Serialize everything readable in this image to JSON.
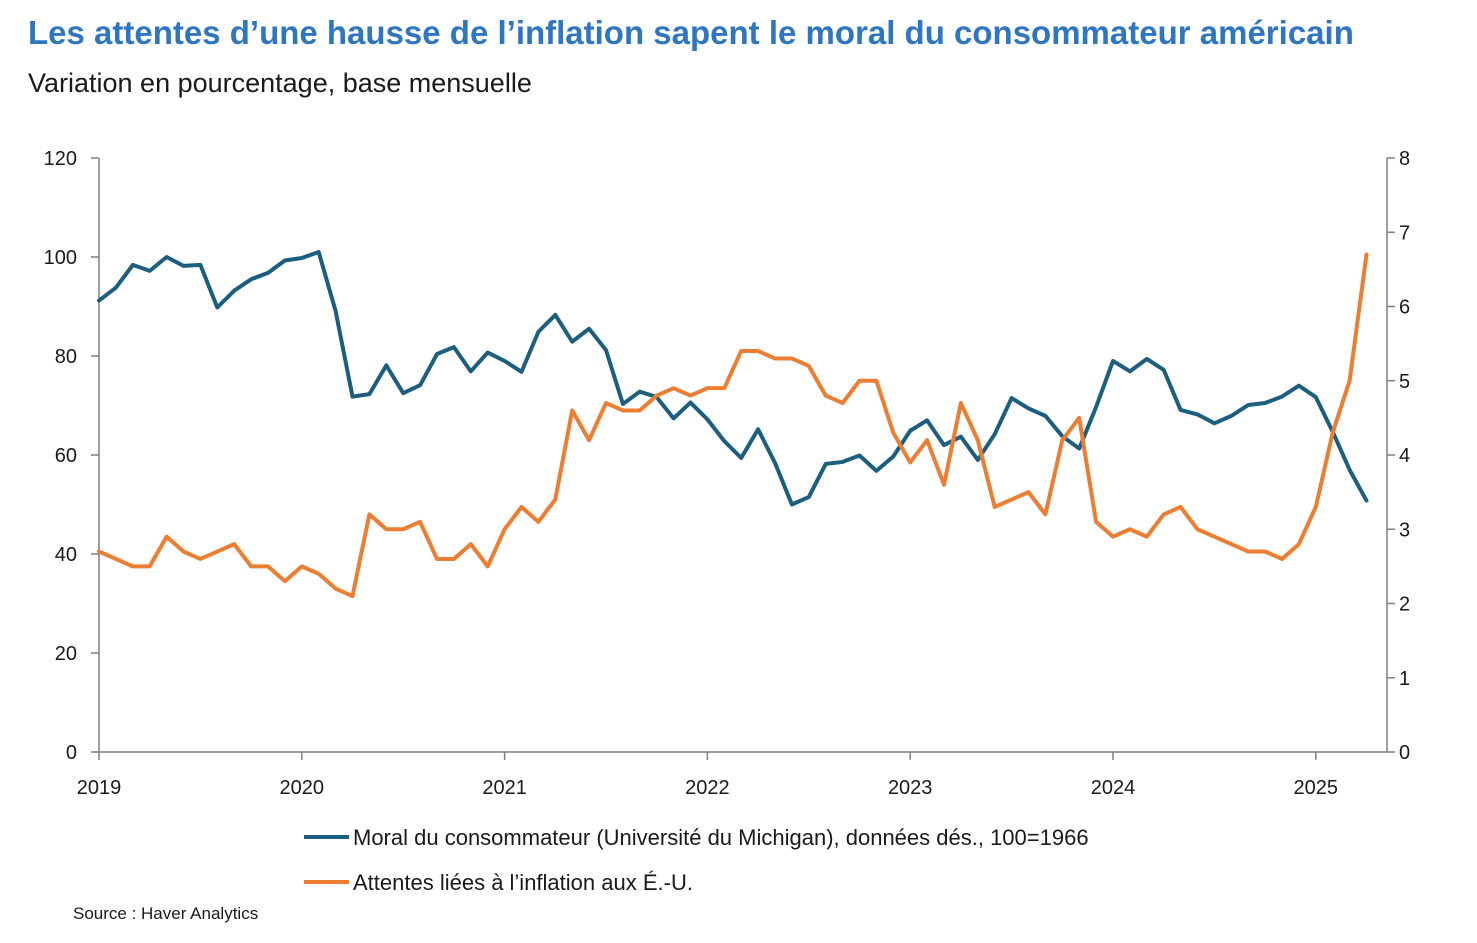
{
  "title": "Les attentes d’une hausse de l’inflation sapent le moral du consommateur américain",
  "subtitle": "Variation en pourcentage, base mensuelle",
  "source": "Source : Haver Analytics",
  "chart_data": {
    "type": "line",
    "x_tick_labels": [
      "2019",
      "2020",
      "2021",
      "2022",
      "2023",
      "2024",
      "2025"
    ],
    "y_left": {
      "ylim": [
        0,
        120
      ],
      "ticks": [
        "0",
        "20",
        "40",
        "60",
        "80",
        "100",
        "120"
      ]
    },
    "y_right": {
      "ylim": [
        0,
        8
      ],
      "ticks": [
        "0",
        "1",
        "2",
        "3",
        "4",
        "5",
        "6",
        "7",
        "8"
      ]
    },
    "x_start": "2019-01",
    "months_per_point": 1,
    "series": [
      {
        "name": "Moral du consommateur (Université du Michigan), données dés., 100=1966",
        "axis": "left",
        "color": "#1B5E80",
        "values": [
          91.2,
          93.8,
          98.4,
          97.2,
          100.0,
          98.2,
          98.4,
          89.8,
          93.2,
          95.5,
          96.8,
          99.3,
          99.8,
          101.0,
          89.1,
          71.8,
          72.3,
          78.1,
          72.5,
          74.1,
          80.4,
          81.8,
          76.9,
          80.7,
          79.0,
          76.8,
          84.9,
          88.3,
          82.9,
          85.5,
          81.2,
          70.3,
          72.8,
          71.7,
          67.4,
          70.6,
          67.2,
          62.8,
          59.4,
          65.2,
          58.4,
          50.0,
          51.5,
          58.2,
          58.6,
          59.9,
          56.8,
          59.7,
          64.9,
          67.0,
          62.0,
          63.7,
          59.0,
          64.2,
          71.5,
          69.4,
          67.9,
          63.8,
          61.3,
          69.7,
          79.0,
          76.9,
          79.4,
          77.2,
          69.1,
          68.2,
          66.4,
          67.9,
          70.1,
          70.5,
          71.8,
          74.0,
          71.7,
          64.7,
          57.0,
          50.8
        ]
      },
      {
        "name": "Attentes liées à l’inflation aux É.-U.",
        "axis": "right",
        "color": "#ED7D31",
        "values": [
          2.7,
          2.6,
          2.5,
          2.5,
          2.9,
          2.7,
          2.6,
          2.7,
          2.8,
          2.5,
          2.5,
          2.3,
          2.5,
          2.4,
          2.2,
          2.1,
          3.2,
          3.0,
          3.0,
          3.1,
          2.6,
          2.6,
          2.8,
          2.5,
          3.0,
          3.3,
          3.1,
          3.4,
          4.6,
          4.2,
          4.7,
          4.6,
          4.6,
          4.8,
          4.9,
          4.8,
          4.9,
          4.9,
          5.4,
          5.4,
          5.3,
          5.3,
          5.2,
          4.8,
          4.7,
          5.0,
          5.0,
          4.3,
          3.9,
          4.2,
          3.6,
          4.7,
          4.2,
          3.3,
          3.4,
          3.5,
          3.2,
          4.2,
          4.5,
          3.1,
          2.9,
          3.0,
          2.9,
          3.2,
          3.3,
          3.0,
          2.9,
          2.8,
          2.7,
          2.7,
          2.6,
          2.8,
          3.3,
          4.3,
          5.0,
          6.7
        ]
      }
    ],
    "legend_position": "bottom"
  }
}
